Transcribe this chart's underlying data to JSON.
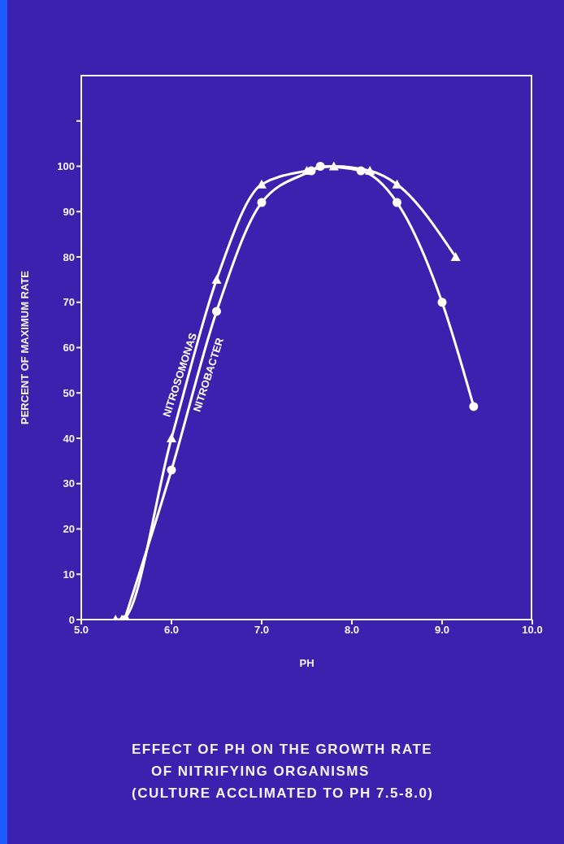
{
  "chart_data": {
    "type": "line",
    "title": "EFFECT OF PH ON THE GROWTH RATE\nOF NITRIFYING ORGANISMS",
    "subtitle": "(CULTURE ACCLIMATED TO PH 7.5-8.0)",
    "xlabel": "PH",
    "ylabel": "PERCENT OF MAXIMUM RATE",
    "series": [
      {
        "name": "NITROSOMONAS",
        "color": "#ffffff",
        "marker": "triangle",
        "x": [
          5.38,
          5.45,
          6.0,
          6.5,
          7.0,
          7.5,
          7.8,
          8.2,
          8.5,
          9.15
        ],
        "values": [
          0,
          0,
          40,
          75,
          96,
          99,
          100,
          99,
          96,
          80
        ]
      },
      {
        "name": "NITROBACTER",
        "color": "#ffffff",
        "marker": "circle",
        "x": [
          5.48,
          6.0,
          6.5,
          7.0,
          7.55,
          7.65,
          8.1,
          8.5,
          9.0,
          9.35
        ],
        "values": [
          0,
          33,
          68,
          92,
          99,
          100,
          99,
          92,
          70,
          47
        ]
      }
    ],
    "xlim": [
      5,
      10
    ],
    "xticks": [
      {
        "value": 5,
        "label": "5.0"
      },
      {
        "value": 6,
        "label": "6.0"
      },
      {
        "value": 7,
        "label": "7.0"
      },
      {
        "value": 8,
        "label": "8.0"
      },
      {
        "value": 9,
        "label": "9.0"
      },
      {
        "value": 10,
        "label": "10.0"
      }
    ],
    "ylim": [
      0,
      120
    ],
    "yticks": [
      0,
      10,
      20,
      30,
      40,
      50,
      60,
      70,
      80,
      90,
      100,
      {
        "value": 110,
        "label": null
      }
    ],
    "line_style": "solid"
  }
}
